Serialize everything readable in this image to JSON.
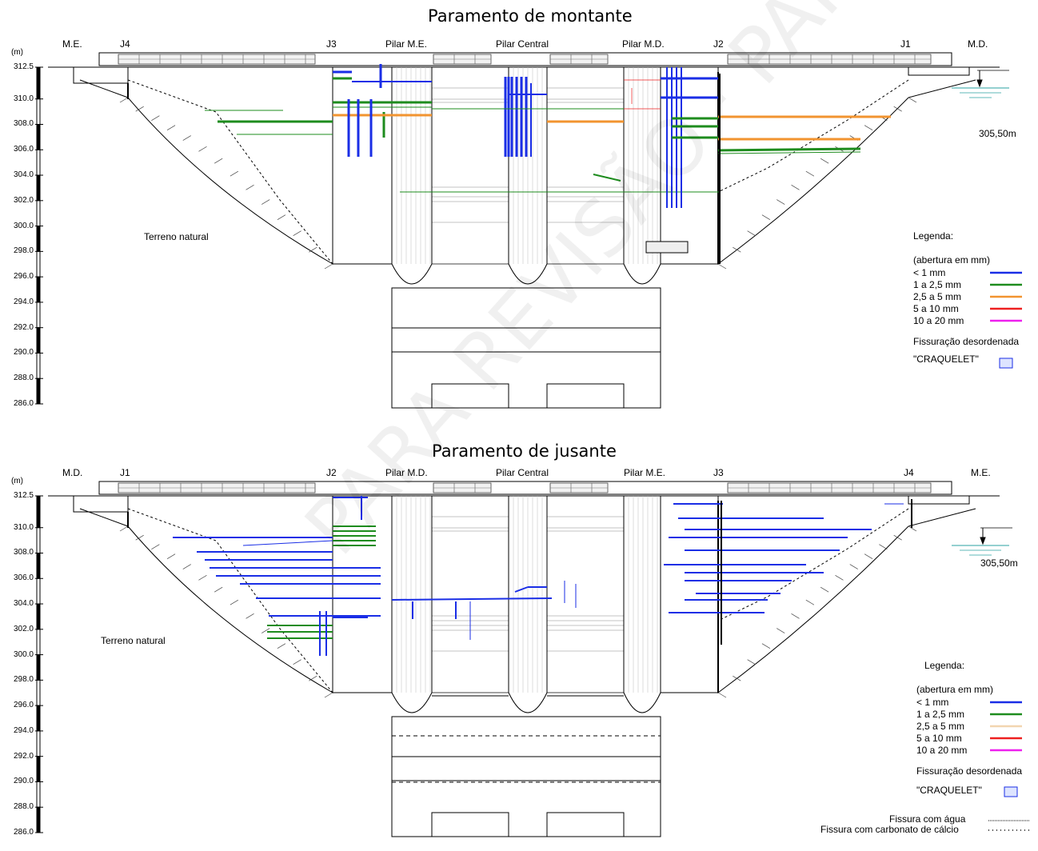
{
  "panels": [
    {
      "id": "montante",
      "title": "Paramento de montante",
      "unit": "(m)",
      "ticks": [
        "312.5",
        "310.0",
        "308.0",
        "306.0",
        "304.0",
        "302.0",
        "300.0",
        "298.0",
        "296.0",
        "294.0",
        "292.0",
        "290.0",
        "288.0",
        "286.0"
      ],
      "labels": [
        "M.E.",
        "J4",
        "J3",
        "Pilar M.E.",
        "Pilar Central",
        "Pilar M.D.",
        "J2",
        "J1",
        "M.D."
      ],
      "terrain_label": "Terreno natural",
      "water_level": "305,50m",
      "legend": {
        "title": "Legenda:",
        "subtitle": "(abertura em mm)",
        "items": [
          {
            "label": "< 1 mm",
            "color": "#1a2ee6"
          },
          {
            "label": "1 a 2,5 mm",
            "color": "#1e8c1e"
          },
          {
            "label": "2,5 a 5 mm",
            "color": "#f29430"
          },
          {
            "label": "5 a 10 mm",
            "color": "#ee2020"
          },
          {
            "label": "10 a 20 mm",
            "color": "#ee20ee"
          }
        ],
        "craquelet_title": "Fissuração desordenada",
        "craquelet_label": "\"CRAQUELET\""
      }
    },
    {
      "id": "jusante",
      "title": "Paramento de jusante",
      "unit": "(m)",
      "ticks": [
        "312.5",
        "310.0",
        "308.0",
        "306.0",
        "304.0",
        "302.0",
        "300.0",
        "298.0",
        "296.0",
        "294.0",
        "292.0",
        "290.0",
        "288.0",
        "286.0"
      ],
      "labels": [
        "M.D.",
        "J1",
        "J2",
        "Pilar M.D.",
        "Pilar Central",
        "Pilar M.E.",
        "J3",
        "J4",
        "M.E."
      ],
      "terrain_label": "Terreno natural",
      "water_level": "305,50m",
      "legend": {
        "title": "Legenda:",
        "subtitle": "(abertura em mm)",
        "items": [
          {
            "label": "< 1 mm",
            "color": "#1a2ee6"
          },
          {
            "label": "1 a 2,5 mm",
            "color": "#1e8c1e"
          },
          {
            "label": "2,5 a 5 mm",
            "color": "#f2d6b0"
          },
          {
            "label": "5 a 10 mm",
            "color": "#ee2020"
          },
          {
            "label": "10 a 20 mm",
            "color": "#ee20ee"
          }
        ],
        "craquelet_title": "Fissuração desordenada",
        "craquelet_label": "\"CRAQUELET\"",
        "water_crack": "Fissura com água",
        "calcium_crack": "Fissura com carbonato de cálcio"
      }
    }
  ],
  "watermark": "PARA REVISÃO · PARA REVISÃO"
}
